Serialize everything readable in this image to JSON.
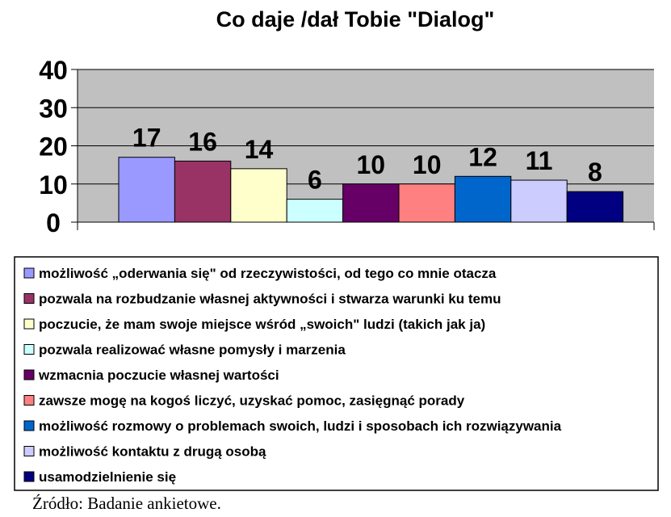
{
  "chart_data": {
    "type": "bar",
    "title": "Co daje /dał Tobie \"Dialog\"",
    "xlabel": "",
    "ylabel": "",
    "ylim": [
      0,
      40
    ],
    "yticks": [
      0,
      10,
      20,
      30,
      40
    ],
    "grid": true,
    "legend_position": "bottom",
    "plot_background": "#c0c0c0",
    "series": [
      {
        "name": "możliwość „oderwania się\" od rzeczywistości, od tego co mnie otacza",
        "value": 17,
        "color": "#9999ff"
      },
      {
        "name": "pozwala na rozbudzanie własnej aktywności i stwarza warunki ku temu",
        "value": 16,
        "color": "#993366"
      },
      {
        "name": "poczucie, że mam swoje miejsce wśród „swoich\" ludzi (takich jak ja)",
        "value": 14,
        "color": "#ffffcc"
      },
      {
        "name": "pozwala realizować własne pomysły i marzenia",
        "value": 6,
        "color": "#ccffff"
      },
      {
        "name": "wzmacnia poczucie własnej wartości",
        "value": 10,
        "color": "#660066"
      },
      {
        "name": "zawsze mogę na kogoś liczyć, uzyskać pomoc, zasięgnąć porady",
        "value": 10,
        "color": "#ff8080"
      },
      {
        "name": "możliwość rozmowy o problemach swoich, ludzi i sposobach ich rozwiązywania",
        "value": 12,
        "color": "#0066cc"
      },
      {
        "name": "możliwość kontaktu z drugą osobą",
        "value": 11,
        "color": "#ccccff"
      },
      {
        "name": "usamodzielnienie się",
        "value": 8,
        "color": "#000080"
      }
    ]
  },
  "source_note": "Źródło: Badanie ankietowe."
}
